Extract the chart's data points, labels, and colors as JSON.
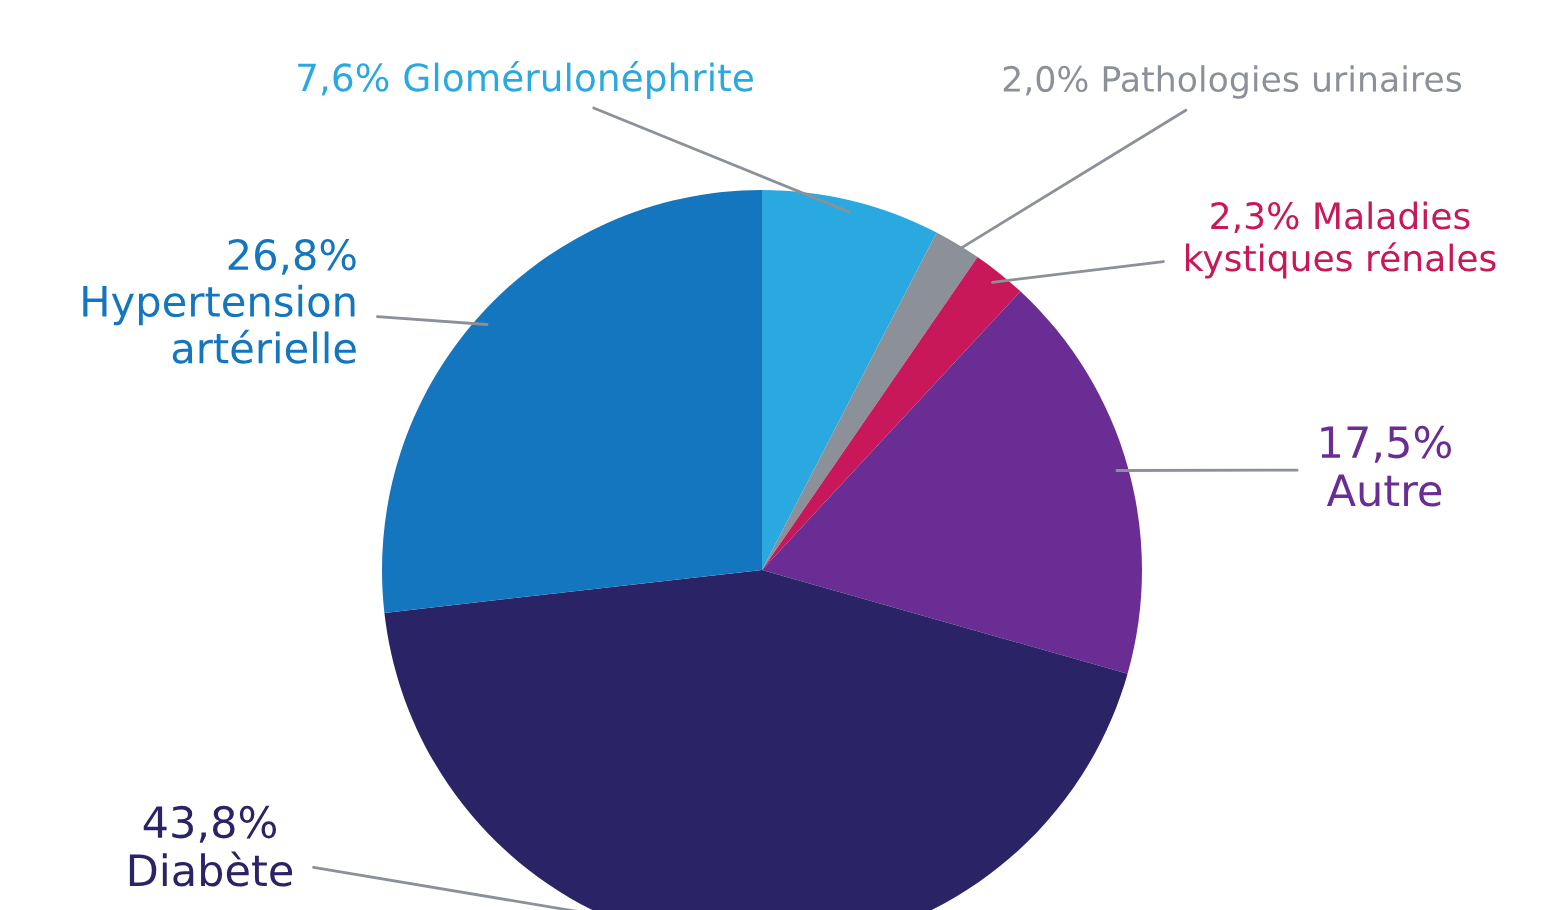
{
  "chart_data": {
    "type": "pie",
    "categories": [
      "Glomérulonéphrite",
      "Pathologies urinaires",
      "Maladies\nkystiques rénales",
      "Autre",
      "Diabète",
      "Hypertension\nartérielle"
    ],
    "values": [
      7.6,
      2.0,
      2.3,
      17.5,
      43.8,
      26.8
    ],
    "value_labels": [
      "7,6%",
      "2,0%",
      "2,3%",
      "17,5%",
      "43,8%",
      "26,8%"
    ],
    "colors": [
      "#2aa9e0",
      "#8c9099",
      "#c8185a",
      "#6a2d94",
      "#2a2466",
      "#1476be"
    ],
    "legend": false
  }
}
